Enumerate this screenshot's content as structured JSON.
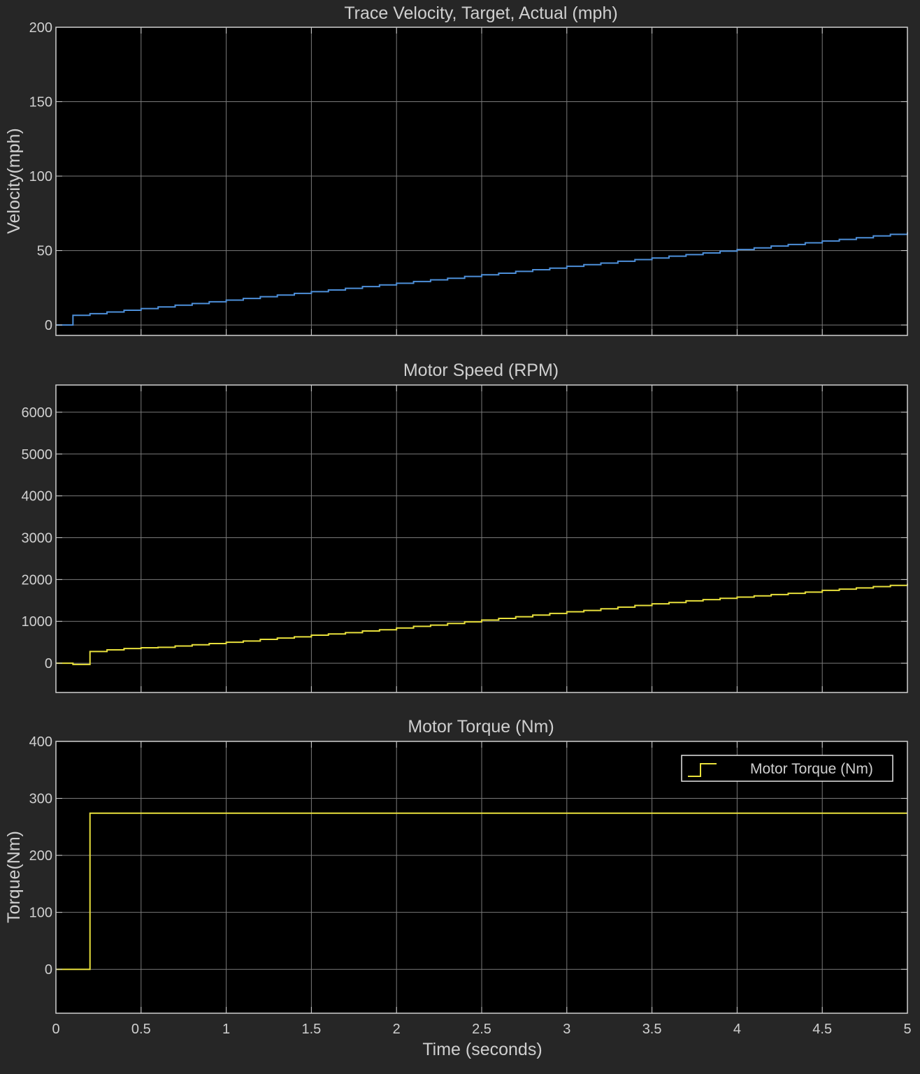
{
  "colors": {
    "background": "#262626",
    "axes_bg": "#000000",
    "grid": "#7a7a7a",
    "axes_border": "#d0d0d0",
    "text": "#cfcfcf",
    "velocity_line": "#4d8fd9",
    "speed_line": "#e8e03c",
    "torque_line": "#e8e03c"
  },
  "xlabel": "Time (seconds)",
  "chart_data": [
    {
      "type": "line",
      "title": "Trace Velocity, Target, Actual (mph)",
      "ylabel": "Velocity(mph)",
      "xlim": [
        0,
        5
      ],
      "ylim": [
        -7,
        200
      ],
      "yticks": [
        0,
        50,
        100,
        150,
        200
      ],
      "xticks": [
        0,
        0.5,
        1,
        1.5,
        2,
        2.5,
        3,
        3.5,
        4,
        4.5,
        5
      ],
      "grid": true,
      "step": true,
      "series": [
        {
          "x": [
            0,
            0.1,
            0.2,
            0.3,
            0.4,
            0.5,
            0.6,
            0.7,
            0.8,
            0.9,
            1.0,
            1.1,
            1.2,
            1.3,
            1.4,
            1.5,
            1.6,
            1.7,
            1.8,
            1.9,
            2.0,
            2.1,
            2.2,
            2.3,
            2.4,
            2.5,
            2.6,
            2.7,
            2.8,
            2.9,
            3.0,
            3.1,
            3.2,
            3.3,
            3.4,
            3.5,
            3.6,
            3.7,
            3.8,
            3.9,
            4.0,
            4.1,
            4.2,
            4.3,
            4.4,
            4.5,
            4.6,
            4.7,
            4.8,
            4.9,
            5.0
          ],
          "y": [
            0,
            6.5,
            7.6,
            8.7,
            9.9,
            11.0,
            12.1,
            13.3,
            14.4,
            15.6,
            16.7,
            17.8,
            19.0,
            20.1,
            21.2,
            22.4,
            23.5,
            24.6,
            25.8,
            26.9,
            28.0,
            29.2,
            30.3,
            31.4,
            32.6,
            33.7,
            34.8,
            36.0,
            37.1,
            38.2,
            39.4,
            40.5,
            41.6,
            42.8,
            43.9,
            45.0,
            46.2,
            47.3,
            48.4,
            49.6,
            50.7,
            51.8,
            53.0,
            54.1,
            55.2,
            56.4,
            57.5,
            58.6,
            59.8,
            60.9,
            62.3
          ]
        }
      ]
    },
    {
      "type": "line",
      "title": "Motor Speed (RPM)",
      "ylabel": "",
      "xlim": [
        0,
        5
      ],
      "ylim": [
        -700,
        6650
      ],
      "yticks": [
        0,
        1000,
        2000,
        3000,
        4000,
        5000,
        6000
      ],
      "xticks": [
        0,
        0.5,
        1,
        1.5,
        2,
        2.5,
        3,
        3.5,
        4,
        4.5,
        5
      ],
      "grid": true,
      "step": true,
      "series": [
        {
          "x": [
            0,
            0.1,
            0.2,
            0.3,
            0.4,
            0.5,
            0.6,
            0.7,
            0.8,
            0.9,
            1.0,
            1.1,
            1.2,
            1.3,
            1.4,
            1.5,
            1.6,
            1.7,
            1.8,
            1.9,
            2.0,
            2.1,
            2.2,
            2.3,
            2.4,
            2.5,
            2.6,
            2.7,
            2.8,
            2.9,
            3.0,
            3.1,
            3.2,
            3.3,
            3.4,
            3.5,
            3.6,
            3.7,
            3.8,
            3.9,
            4.0,
            4.1,
            4.2,
            4.3,
            4.4,
            4.5,
            4.6,
            4.7,
            4.8,
            4.9,
            5.0
          ],
          "y": [
            0,
            -30,
            280,
            320,
            350,
            370,
            380,
            410,
            440,
            470,
            500,
            530,
            570,
            600,
            630,
            670,
            700,
            730,
            770,
            800,
            840,
            880,
            910,
            950,
            990,
            1030,
            1070,
            1110,
            1150,
            1190,
            1230,
            1260,
            1300,
            1340,
            1380,
            1420,
            1450,
            1490,
            1520,
            1550,
            1580,
            1610,
            1640,
            1670,
            1700,
            1740,
            1770,
            1800,
            1830,
            1860,
            1900
          ]
        }
      ]
    },
    {
      "type": "line",
      "title": "Motor Torque (Nm)",
      "ylabel": "Torque(Nm)",
      "xlim": [
        0,
        5
      ],
      "ylim": [
        -77,
        400
      ],
      "yticks": [
        0,
        100,
        200,
        300,
        400
      ],
      "xticks": [
        0,
        0.5,
        1,
        1.5,
        2,
        2.5,
        3,
        3.5,
        4,
        4.5,
        5
      ],
      "grid": true,
      "step": true,
      "legend": {
        "position": "top-right",
        "entries": [
          "Motor Torque (Nm)"
        ]
      },
      "series": [
        {
          "name": "Motor Torque (Nm)",
          "x": [
            0,
            0.2,
            5.0
          ],
          "y": [
            0,
            274,
            274
          ]
        }
      ]
    }
  ]
}
